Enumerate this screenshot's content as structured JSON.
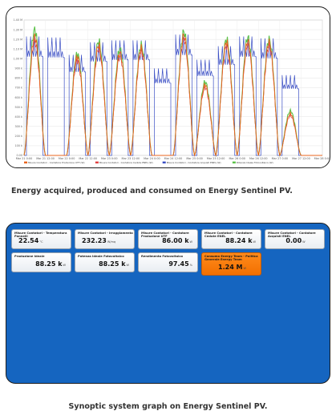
{
  "captions": {
    "chart": "Energy acquired, produced and consumed on Energy Sentinel PV.",
    "synoptic": "Synoptic system graph on Energy Sentinel PV."
  },
  "chart_data": {
    "type": "line",
    "title": "",
    "xlabel": "",
    "ylabel": "",
    "ylim": [
      0,
      1400
    ],
    "yticks": [
      "0.00",
      "100 k",
      "200 k",
      "300 k",
      "400 k",
      "500 k",
      "600 k",
      "700 k",
      "800 k",
      "900 k",
      "1.00 M",
      "1.10 M",
      "1.20 M",
      "1.30 M",
      "1.40 M"
    ],
    "xticks": [
      "Mar 21 0:00",
      "Mar 21 12:00",
      "Mar 22 0:00",
      "Mar 22 12:00",
      "Mar 23 0:00",
      "Mar 23 12:00",
      "Mar 24 0:00",
      "Mar 24 12:00",
      "Mar 25 0:00",
      "Mar 25 12:00",
      "Mar 26 0:00",
      "Mar 26 12:00",
      "Mar 27 0:00",
      "Mar 27 12:00",
      "Mar 28 0:00"
    ],
    "legend_position": "bottom",
    "series": [
      {
        "name": "Misure Contatori - Contatore Produzione UTF (W)",
        "color": "#e8651f",
        "peaks": [
          1230,
          0,
          1020,
          1140,
          1060,
          1110,
          0,
          1240,
          730,
          1170,
          1180,
          1170,
          430,
          0
        ]
      },
      {
        "name": "Misure Contatori - Contatore Cedute ENEL (W)",
        "color": "#e04040",
        "peaks": [
          1180,
          0,
          980,
          1100,
          1020,
          1070,
          0,
          1200,
          700,
          1130,
          1140,
          1130,
          410,
          0
        ]
      },
      {
        "name": "Misure Contatori - Contatore Acquisti ENEL (W)",
        "color": "#3a4ec4",
        "peaks": [
          1230,
          1220,
          1040,
          1170,
          1190,
          1190,
          900,
          1250,
          990,
          1130,
          1230,
          1210,
          830,
          0
        ]
      },
      {
        "name": "Potenza Ideale Fotovoltaico (W)",
        "color": "#5cc24a",
        "peaks": [
          1300,
          0,
          1050,
          1180,
          1100,
          1140,
          0,
          1280,
          760,
          1200,
          1220,
          1200,
          460,
          0
        ]
      }
    ]
  },
  "tiles": [
    {
      "title": "Misure Contatori - Temperatura Pannelli",
      "value": "22.54",
      "unit": "°C",
      "align": "left"
    },
    {
      "title": "Misure Contatori - Irraggiamento",
      "value": "232.23",
      "unit": "W/mq",
      "align": "left"
    },
    {
      "title": "Misure Contatori - Contatore Produzione UTF",
      "value": "86.00 k",
      "unit": "W",
      "align": "right"
    },
    {
      "title": "Misure Contatori - Contatore Cedute ENEL",
      "value": "88.24 k",
      "unit": "W",
      "align": "right"
    },
    {
      "title": "Misure Contatori - Contatore Acquisti ENEL",
      "value": "0.00",
      "unit": "W",
      "align": "center"
    },
    {
      "title": "Produzione Ideale",
      "value": "88.25 k",
      "unit": "W",
      "align": "left"
    },
    {
      "title": "Potenza Ideale Fotovoltaico",
      "value": "88.25 k",
      "unit": "W",
      "align": "right"
    },
    {
      "title": "Rendimento Fotovoltaico",
      "value": "97.45",
      "unit": "%",
      "align": "right"
    },
    {
      "title": "Consumo Energy Team - Politica Generale Energy Team",
      "value": "1.24 M",
      "unit": "W",
      "align": "center",
      "alert": true
    }
  ]
}
